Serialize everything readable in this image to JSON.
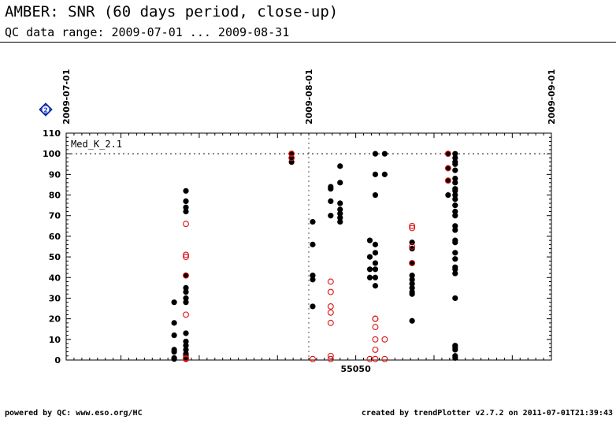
{
  "header": {
    "title": "AMBER: SNR (60 days period, close-up)",
    "subtitle": "QC data range: 2009-07-01 ... 2009-08-31"
  },
  "footer": {
    "left": "powered by QC: www.eso.org/HC",
    "right": "created by trendPlotter v2.7.2 on 2011-07-01T21:39:43"
  },
  "info_badge": "2",
  "colors": {
    "filled": "#000000",
    "open": "#dd1111",
    "dotted": "#555555"
  },
  "chart_data": {
    "type": "scatter",
    "series_label": "Med_K_2.1",
    "xlim": [
      55013,
      55075
    ],
    "ylim": [
      0,
      110
    ],
    "y_ticks": [
      0,
      10,
      20,
      30,
      40,
      50,
      60,
      70,
      80,
      90,
      100,
      110
    ],
    "x_tick_labels": [
      {
        "x": 55050,
        "label": "55050"
      }
    ],
    "date_markers": [
      {
        "x": 55013.0,
        "label": "2009-07-01"
      },
      {
        "x": 55044.0,
        "label": "2009-08-01"
      },
      {
        "x": 55075.0,
        "label": "2009-09-01"
      }
    ],
    "reference_line_y": 100,
    "series": [
      {
        "name": "filled",
        "points": [
          [
            55026.8,
            28
          ],
          [
            55026.8,
            18
          ],
          [
            55026.8,
            12
          ],
          [
            55026.8,
            5
          ],
          [
            55026.8,
            4
          ],
          [
            55026.8,
            1
          ],
          [
            55026.8,
            0.5
          ],
          [
            55028.3,
            82
          ],
          [
            55028.3,
            77
          ],
          [
            55028.3,
            74
          ],
          [
            55028.3,
            72
          ],
          [
            55028.3,
            41
          ],
          [
            55028.3,
            35
          ],
          [
            55028.3,
            33
          ],
          [
            55028.3,
            30
          ],
          [
            55028.3,
            28
          ],
          [
            55028.3,
            13
          ],
          [
            55028.3,
            9
          ],
          [
            55028.3,
            7
          ],
          [
            55028.3,
            5
          ],
          [
            55028.3,
            3
          ],
          [
            55028.3,
            2
          ],
          [
            55028.3,
            1
          ],
          [
            55028.3,
            0.5
          ],
          [
            55041.8,
            100
          ],
          [
            55041.8,
            98
          ],
          [
            55041.8,
            96
          ],
          [
            55044.5,
            67
          ],
          [
            55044.5,
            56
          ],
          [
            55044.5,
            41
          ],
          [
            55044.5,
            39
          ],
          [
            55044.5,
            26
          ],
          [
            55046.8,
            84
          ],
          [
            55046.8,
            83
          ],
          [
            55046.8,
            77
          ],
          [
            55046.8,
            70
          ],
          [
            55048.0,
            94
          ],
          [
            55048.0,
            86
          ],
          [
            55048.0,
            76
          ],
          [
            55048.0,
            73
          ],
          [
            55048.0,
            71
          ],
          [
            55048.0,
            69
          ],
          [
            55048.0,
            67
          ],
          [
            55051.8,
            58
          ],
          [
            55051.8,
            50
          ],
          [
            55051.8,
            44
          ],
          [
            55051.8,
            40
          ],
          [
            55052.5,
            100
          ],
          [
            55052.5,
            90
          ],
          [
            55052.5,
            80
          ],
          [
            55052.5,
            56
          ],
          [
            55052.5,
            52
          ],
          [
            55052.5,
            47
          ],
          [
            55052.5,
            44
          ],
          [
            55052.5,
            40
          ],
          [
            55052.5,
            36
          ],
          [
            55053.7,
            100
          ],
          [
            55053.7,
            90
          ],
          [
            55057.2,
            57
          ],
          [
            55057.2,
            54
          ],
          [
            55057.2,
            47
          ],
          [
            55057.2,
            41
          ],
          [
            55057.2,
            39
          ],
          [
            55057.2,
            37
          ],
          [
            55057.2,
            35
          ],
          [
            55057.2,
            33
          ],
          [
            55057.2,
            32
          ],
          [
            55057.2,
            19
          ],
          [
            55061.8,
            100
          ],
          [
            55061.8,
            93
          ],
          [
            55061.8,
            87
          ],
          [
            55061.8,
            80
          ],
          [
            55062.7,
            100
          ],
          [
            55062.7,
            98
          ],
          [
            55062.7,
            96
          ],
          [
            55062.7,
            95
          ],
          [
            55062.7,
            92
          ],
          [
            55062.7,
            88
          ],
          [
            55062.7,
            86
          ],
          [
            55062.7,
            83
          ],
          [
            55062.7,
            82
          ],
          [
            55062.7,
            80
          ],
          [
            55062.7,
            78
          ],
          [
            55062.7,
            75
          ],
          [
            55062.7,
            72
          ],
          [
            55062.7,
            70
          ],
          [
            55062.7,
            65
          ],
          [
            55062.7,
            63
          ],
          [
            55062.7,
            58
          ],
          [
            55062.7,
            57
          ],
          [
            55062.7,
            52
          ],
          [
            55062.7,
            49
          ],
          [
            55062.7,
            45
          ],
          [
            55062.7,
            44
          ],
          [
            55062.7,
            42
          ],
          [
            55062.7,
            30
          ],
          [
            55062.7,
            7
          ],
          [
            55062.7,
            6
          ],
          [
            55062.7,
            5
          ],
          [
            55062.7,
            2
          ],
          [
            55062.7,
            1
          ]
        ]
      },
      {
        "name": "open",
        "points": [
          [
            55028.3,
            66
          ],
          [
            55028.3,
            51
          ],
          [
            55028.3,
            50
          ],
          [
            55028.3,
            41
          ],
          [
            55028.3,
            22
          ],
          [
            55028.3,
            1
          ],
          [
            55028.3,
            0.5
          ],
          [
            55041.8,
            100
          ],
          [
            55041.8,
            98
          ],
          [
            55044.5,
            0.5
          ],
          [
            55046.8,
            38
          ],
          [
            55046.8,
            33
          ],
          [
            55046.8,
            26
          ],
          [
            55046.8,
            23
          ],
          [
            55046.8,
            18
          ],
          [
            55046.8,
            2
          ],
          [
            55046.8,
            0.5
          ],
          [
            55051.8,
            0.5
          ],
          [
            55052.5,
            20
          ],
          [
            55052.5,
            20
          ],
          [
            55052.5,
            16
          ],
          [
            55052.5,
            10
          ],
          [
            55052.5,
            5
          ],
          [
            55052.5,
            0.5
          ],
          [
            55053.7,
            10
          ],
          [
            55053.7,
            0.5
          ],
          [
            55057.2,
            65
          ],
          [
            55057.2,
            64
          ],
          [
            55057.2,
            55
          ],
          [
            55057.2,
            47
          ],
          [
            55061.8,
            100
          ],
          [
            55061.8,
            93
          ],
          [
            55061.8,
            87
          ]
        ]
      }
    ]
  }
}
